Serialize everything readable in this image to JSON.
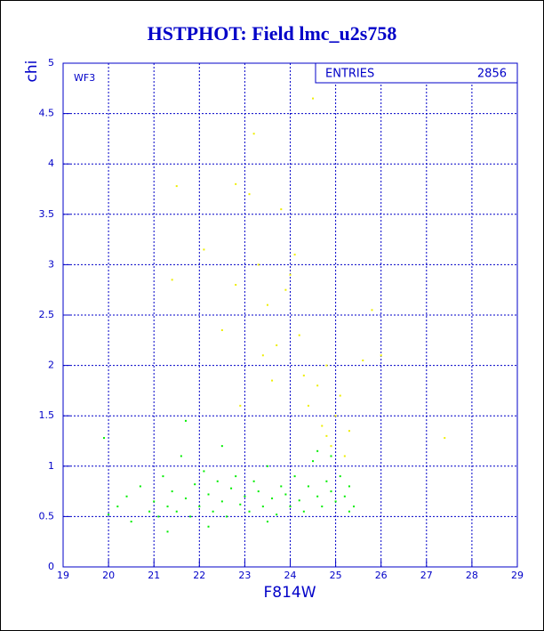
{
  "chart_data": {
    "type": "scatter",
    "title": "HSTPHOT: Field lmc_u2s758",
    "xlabel": "F814W",
    "ylabel": "chi",
    "annotation": "WF3",
    "stats_label": "ENTRIES",
    "stats_value": "2856",
    "xlim": [
      19,
      29
    ],
    "ylim": [
      0,
      5
    ],
    "xticks": [
      19,
      20,
      21,
      22,
      23,
      24,
      25,
      26,
      27,
      28,
      29
    ],
    "yticks": [
      0,
      0.5,
      1,
      1.5,
      2,
      2.5,
      3,
      3.5,
      4,
      4.5,
      5
    ],
    "grid": true,
    "series": [
      {
        "color": "#00ee00",
        "x": [
          20.0,
          20.2,
          20.4,
          20.5,
          20.7,
          20.9,
          21.0,
          21.1,
          21.2,
          21.3,
          21.4,
          21.5,
          21.6,
          21.7,
          21.8,
          21.9,
          22.0,
          22.1,
          22.2,
          22.3,
          22.4,
          22.5,
          22.6,
          22.7,
          22.8,
          22.9,
          23.0,
          23.1,
          23.2,
          23.3,
          23.4,
          23.5,
          23.6,
          23.7,
          23.8,
          23.9,
          24.0,
          24.1,
          24.2,
          24.3,
          24.4,
          24.5,
          24.6,
          24.7,
          24.8,
          24.9,
          25.0,
          25.1,
          25.2,
          25.3,
          25.4,
          19.9,
          21.7,
          22.5,
          24.6,
          25.3,
          24.9,
          23.5,
          22.2,
          21.3
        ],
        "values": [
          0.52,
          0.6,
          0.7,
          0.45,
          0.8,
          0.55,
          0.65,
          0.5,
          0.9,
          0.6,
          0.75,
          0.55,
          1.1,
          0.68,
          0.5,
          0.82,
          0.6,
          0.95,
          0.72,
          0.55,
          0.85,
          0.65,
          0.5,
          0.78,
          0.9,
          0.62,
          0.7,
          0.55,
          0.85,
          0.75,
          0.6,
          1.0,
          0.68,
          0.52,
          0.8,
          0.72,
          0.6,
          0.9,
          0.66,
          0.55,
          0.8,
          1.05,
          0.7,
          0.6,
          0.85,
          0.75,
          0.65,
          0.9,
          0.7,
          0.8,
          0.6,
          1.28,
          1.45,
          1.2,
          1.15,
          0.55,
          1.1,
          0.45,
          0.4,
          0.35
        ]
      },
      {
        "color": "#eeee00",
        "x": [
          21.5,
          21.4,
          22.1,
          22.5,
          22.8,
          22.8,
          23.2,
          23.1,
          23.3,
          23.5,
          23.7,
          23.8,
          23.9,
          24.0,
          24.1,
          24.3,
          24.5,
          24.4,
          24.6,
          24.7,
          24.8,
          24.9,
          25.0,
          25.1,
          25.2,
          25.3,
          25.6,
          25.8,
          26.0,
          27.4,
          24.2,
          23.4,
          22.9,
          24.8,
          23.6
        ],
        "values": [
          3.78,
          2.85,
          3.15,
          2.35,
          2.8,
          3.8,
          4.3,
          3.7,
          3.0,
          2.6,
          2.2,
          3.55,
          2.75,
          2.9,
          3.1,
          1.9,
          4.65,
          1.6,
          1.8,
          1.4,
          1.3,
          1.2,
          1.5,
          1.7,
          1.1,
          1.35,
          2.05,
          2.55,
          2.1,
          1.28,
          2.3,
          2.1,
          1.6,
          2.0,
          1.85
        ]
      }
    ]
  }
}
